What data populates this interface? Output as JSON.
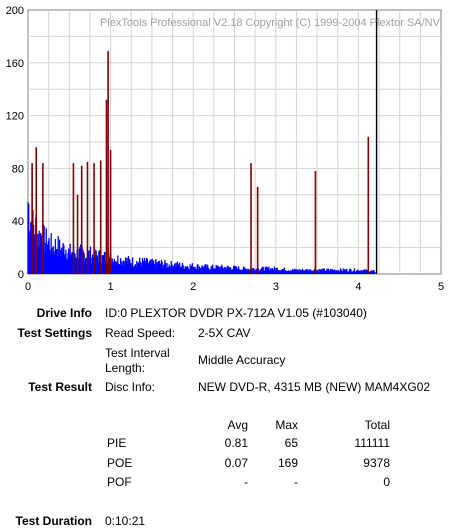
{
  "chart_data": {
    "type": "bar",
    "watermark": "PlexTools Professional V2.18 Copyright (C) 1999-2004 Plextor SA/NV",
    "xlim": [
      0,
      5
    ],
    "ylim": [
      0,
      200
    ],
    "x_ticks": [
      "0",
      "1",
      "2",
      "3",
      "4",
      "5"
    ],
    "y_ticks": [
      "0",
      "40",
      "80",
      "120",
      "160",
      "200"
    ],
    "grid": true,
    "series": [
      {
        "kind": "PIE",
        "color": "#0000ff",
        "points": [
          [
            0.0,
            55
          ],
          [
            0.02,
            44
          ],
          [
            0.05,
            38
          ],
          [
            0.08,
            32
          ],
          [
            0.1,
            35
          ],
          [
            0.13,
            28
          ],
          [
            0.16,
            30
          ],
          [
            0.2,
            25
          ],
          [
            0.25,
            24
          ],
          [
            0.3,
            20
          ],
          [
            0.35,
            22
          ],
          [
            0.4,
            18
          ],
          [
            0.45,
            20
          ],
          [
            0.5,
            16
          ],
          [
            0.55,
            17
          ],
          [
            0.6,
            15
          ],
          [
            0.65,
            16
          ],
          [
            0.7,
            14
          ],
          [
            0.75,
            15
          ],
          [
            0.8,
            13
          ],
          [
            0.85,
            14
          ],
          [
            0.9,
            12
          ],
          [
            0.95,
            13
          ],
          [
            1.0,
            12
          ],
          [
            1.1,
            11
          ],
          [
            1.2,
            10
          ],
          [
            1.3,
            9
          ],
          [
            1.4,
            9
          ],
          [
            1.5,
            8
          ],
          [
            1.6,
            8
          ],
          [
            1.7,
            7
          ],
          [
            1.8,
            7
          ],
          [
            1.9,
            6
          ],
          [
            2.0,
            6
          ],
          [
            2.2,
            5
          ],
          [
            2.4,
            5
          ],
          [
            2.6,
            4
          ],
          [
            2.8,
            4
          ],
          [
            3.0,
            4
          ],
          [
            3.2,
            3
          ],
          [
            3.4,
            3
          ],
          [
            3.6,
            3
          ],
          [
            3.8,
            3
          ],
          [
            4.0,
            3
          ],
          [
            4.2,
            2
          ]
        ]
      },
      {
        "kind": "POE",
        "color": "#800000",
        "points": [
          [
            0.05,
            84
          ],
          [
            0.1,
            96
          ],
          [
            0.18,
            84
          ],
          [
            0.55,
            84
          ],
          [
            0.6,
            60
          ],
          [
            0.65,
            82
          ],
          [
            0.72,
            85
          ],
          [
            0.8,
            84
          ],
          [
            0.88,
            86
          ],
          [
            0.95,
            132
          ],
          [
            0.97,
            169
          ],
          [
            1.0,
            94
          ],
          [
            2.7,
            84
          ],
          [
            2.78,
            66
          ],
          [
            3.48,
            78
          ],
          [
            4.12,
            104
          ]
        ]
      }
    ],
    "marker_x": 4.22
  },
  "info": {
    "drive_label": "Drive Info",
    "drive_value": "ID:0 PLEXTOR DVDR PX-712A V1.05 (#103040)",
    "settings_label": "Test Settings",
    "read_speed_label": "Read Speed:",
    "read_speed_value": "2-5X CAV",
    "interval_label_1": "Test Interval",
    "interval_label_2": "Length:",
    "interval_value": "Middle Accuracy",
    "result_label": "Test Result",
    "disc_label": "Disc Info:",
    "disc_value": "NEW DVD-R, 4315 MB (NEW) MAM4XG02",
    "duration_label": "Test Duration",
    "duration_value": "0:10:21"
  },
  "stats": {
    "headers": {
      "avg": "Avg",
      "max": "Max",
      "total": "Total"
    },
    "rows": [
      {
        "name": "PIE",
        "avg": "0.81",
        "max": "65",
        "total": "111111"
      },
      {
        "name": "POE",
        "avg": "0.07",
        "max": "169",
        "total": "9378"
      },
      {
        "name": "POF",
        "avg": "-",
        "max": "-",
        "total": "0"
      }
    ]
  }
}
